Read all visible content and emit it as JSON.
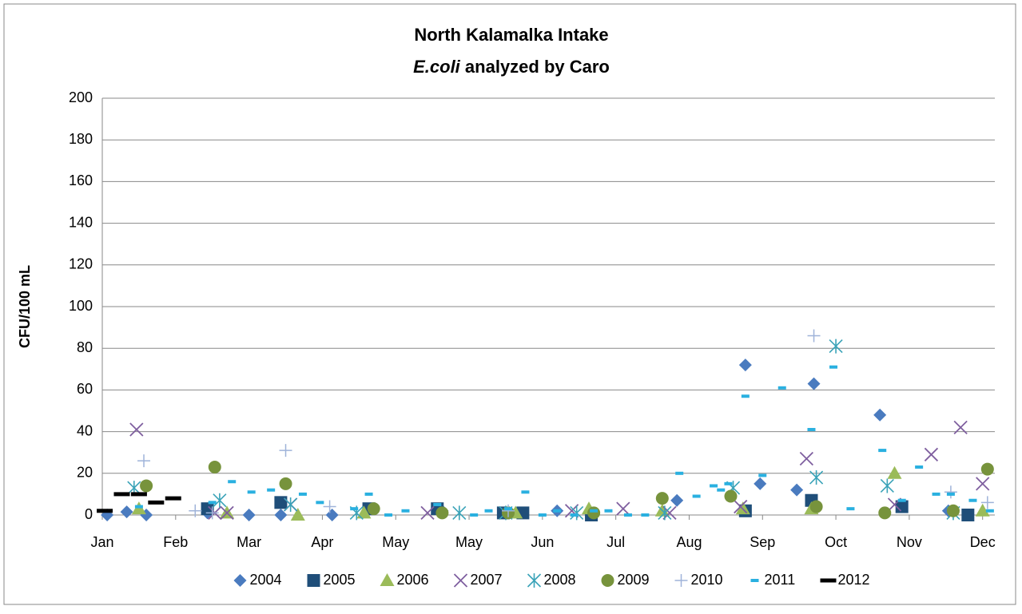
{
  "chart_data": {
    "type": "scatter",
    "title": "North Kalamalka Intake",
    "subtitle_italic": "E.coli",
    "subtitle": "analyzed by Caro",
    "ylabel": "CFU/100 mL",
    "xlim": [
      0,
      365
    ],
    "xticks": [
      {
        "value": 0,
        "label": "Jan"
      },
      {
        "value": 30,
        "label": "Feb"
      },
      {
        "value": 60,
        "label": "Mar"
      },
      {
        "value": 90,
        "label": "Apr"
      },
      {
        "value": 120,
        "label": "May"
      },
      {
        "value": 150,
        "label": "May"
      },
      {
        "value": 180,
        "label": "Jun"
      },
      {
        "value": 210,
        "label": "Jul"
      },
      {
        "value": 240,
        "label": "Aug"
      },
      {
        "value": 270,
        "label": "Sep"
      },
      {
        "value": 300,
        "label": "Oct"
      },
      {
        "value": 330,
        "label": "Nov"
      },
      {
        "value": 360,
        "label": "Dec"
      }
    ],
    "ylim": [
      0,
      200
    ],
    "yticks": [
      0,
      20,
      40,
      60,
      80,
      100,
      120,
      140,
      160,
      180,
      200
    ],
    "grid": true,
    "legend": "bottom",
    "series": [
      {
        "name": "2004",
        "color": "#4a7bbf",
        "marker": "diamond",
        "x": [
          2,
          10,
          18,
          43,
          60,
          73,
          94,
          139,
          186,
          235,
          263,
          269,
          284,
          291,
          318,
          346
        ],
        "values": [
          0,
          1.5,
          0,
          1,
          0,
          0,
          0,
          2,
          2,
          7,
          72,
          15,
          12,
          63,
          48,
          2
        ]
      },
      {
        "name": "2005",
        "color": "#1f4e79",
        "marker": "square",
        "x": [
          43,
          73,
          109,
          137,
          164,
          172,
          200,
          263,
          290,
          327,
          354
        ],
        "values": [
          3,
          6,
          3,
          3,
          1,
          1,
          0,
          2,
          7,
          4,
          0
        ]
      },
      {
        "name": "2006",
        "color": "#9bbb59",
        "marker": "triangle",
        "x": [
          15,
          51,
          80,
          107,
          169,
          199,
          229,
          262,
          290,
          324,
          360
        ],
        "values": [
          3,
          1,
          0,
          1,
          1,
          3,
          2,
          3,
          3,
          20,
          2
        ]
      },
      {
        "name": "2007",
        "color": "#7f5f9f",
        "marker": "x",
        "x": [
          14,
          46,
          51,
          77,
          133,
          192,
          213,
          232,
          261,
          288,
          324,
          339,
          351,
          360
        ],
        "values": [
          41,
          1,
          1,
          5,
          1,
          2,
          3,
          1,
          4,
          27,
          5,
          29,
          42,
          15
        ]
      },
      {
        "name": "2008",
        "color": "#3aa3b8",
        "marker": "star",
        "x": [
          13,
          48,
          77,
          104,
          146,
          165,
          194,
          230,
          258,
          292,
          300,
          321,
          348
        ],
        "values": [
          13,
          7,
          5,
          1,
          1,
          1,
          1,
          1,
          13,
          18,
          81,
          14,
          1
        ]
      },
      {
        "name": "2009",
        "color": "#77933c",
        "marker": "circle",
        "x": [
          18,
          46,
          75,
          111,
          139,
          166,
          201,
          229,
          257,
          292,
          320,
          348,
          362
        ],
        "values": [
          14,
          23,
          15,
          3,
          1,
          1,
          1,
          8,
          9,
          4,
          1,
          2,
          22
        ]
      },
      {
        "name": "2010",
        "color": "#9fb3d9",
        "marker": "plus",
        "x": [
          17,
          38,
          45,
          75,
          93,
          166,
          291,
          347,
          362
        ],
        "values": [
          26,
          2,
          1,
          31,
          4,
          2,
          86,
          11,
          6
        ]
      },
      {
        "name": "2011",
        "color": "#2ab0e0",
        "marker": "dash",
        "x": [
          15,
          45,
          53,
          61,
          69,
          82,
          89,
          103,
          109,
          117,
          124,
          137,
          152,
          158,
          166,
          173,
          180,
          186,
          193,
          201,
          207,
          215,
          222,
          236,
          243,
          250,
          253,
          256,
          263,
          270,
          278,
          290,
          299,
          306,
          319,
          327,
          334,
          341,
          347,
          356,
          363
        ],
        "values": [
          4,
          6,
          16,
          11,
          12,
          10,
          6,
          3,
          10,
          0,
          2,
          5,
          0,
          2,
          3,
          11,
          0,
          2,
          0,
          2,
          2,
          0,
          0,
          20,
          9,
          14,
          12,
          15,
          57,
          19,
          61,
          41,
          71,
          3,
          31,
          7,
          23,
          10,
          10,
          7,
          2
        ]
      },
      {
        "name": "2012",
        "color": "#000000",
        "marker": "bar",
        "x": [
          1,
          8,
          15,
          22,
          29
        ],
        "values": [
          2,
          10,
          10,
          6,
          8
        ]
      }
    ]
  }
}
